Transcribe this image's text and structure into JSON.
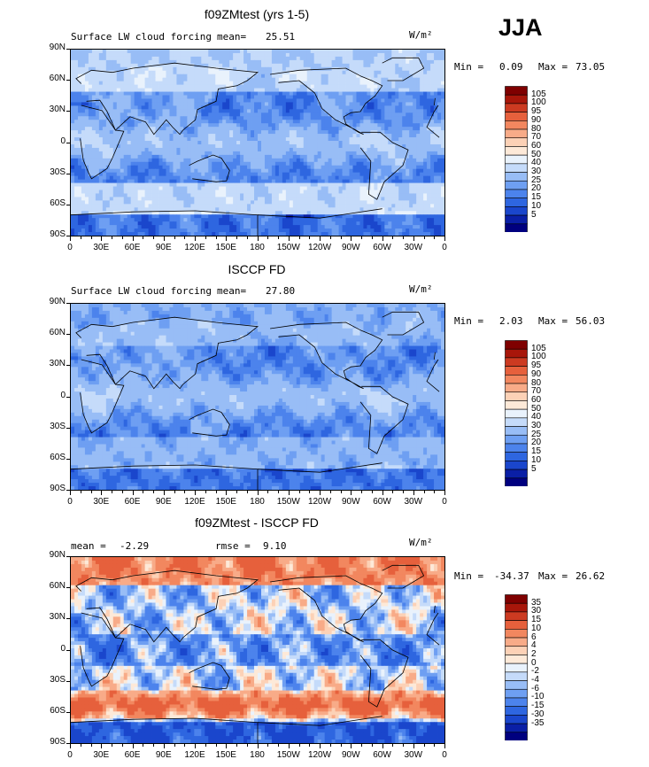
{
  "season": "JJA",
  "colors": {
    "sequential": [
      "#00007f",
      "#0a1fa6",
      "#1a46cc",
      "#2e66e0",
      "#4c83ec",
      "#6e9ff2",
      "#98bdf6",
      "#c5dbfa",
      "#e9f2fc",
      "#fde9d8",
      "#fcd1b6",
      "#f8ab88",
      "#f2875f",
      "#e6603c",
      "#cc3a21",
      "#a8160a",
      "#7f0000"
    ],
    "diverging": [
      "#00007f",
      "#0a1fa6",
      "#1a46cc",
      "#2e66e0",
      "#4c83ec",
      "#6e9ff2",
      "#98bdf6",
      "#c5dbfa",
      "#e9f2fc",
      "#fde9d8",
      "#fcd1b6",
      "#f8ab88",
      "#f2875f",
      "#e6603c",
      "#cc3a21",
      "#a8160a",
      "#7f0000"
    ]
  },
  "panels": [
    {
      "title": "f09ZMtest (yrs 1-5)",
      "left_label": "Surface LW cloud forcing",
      "mean_label": "mean=",
      "mean_value": "25.51",
      "rmse_label": "",
      "rmse_value": "",
      "units": "W/m²",
      "min_label": "Min =",
      "min_value": "0.09",
      "max_label": "Max =",
      "max_value": "73.05",
      "legend_levels": [
        "105",
        "100",
        "95",
        "90",
        "80",
        "70",
        "60",
        "50",
        "40",
        "30",
        "25",
        "20",
        "15",
        "10",
        "5"
      ],
      "palette": "sequential"
    },
    {
      "title": "ISCCP FD",
      "left_label": "Surface LW cloud forcing",
      "mean_label": "mean=",
      "mean_value": "27.80",
      "rmse_label": "",
      "rmse_value": "",
      "units": "W/m²",
      "min_label": "Min =",
      "min_value": "2.03",
      "max_label": "Max =",
      "max_value": "56.03",
      "legend_levels": [
        "105",
        "100",
        "95",
        "90",
        "80",
        "70",
        "60",
        "50",
        "40",
        "30",
        "25",
        "20",
        "15",
        "10",
        "5"
      ],
      "palette": "sequential"
    },
    {
      "title": "f09ZMtest - ISCCP FD",
      "left_label": "",
      "mean_label": "mean =",
      "mean_value": "-2.29",
      "rmse_label": "rmse =",
      "rmse_value": "9.10",
      "units": "W/m²",
      "min_label": "Min =",
      "min_value": "-34.37",
      "max_label": "Max =",
      "max_value": "26.62",
      "legend_levels": [
        "35",
        "30",
        "15",
        "10",
        "6",
        "4",
        "2",
        "0",
        "-2",
        "-4",
        "-6",
        "-10",
        "-15",
        "-30",
        "-35"
      ],
      "palette": "diverging"
    }
  ],
  "axes": {
    "lat_ticks": [
      "90N",
      "60N",
      "30N",
      "0",
      "30S",
      "60S",
      "90S"
    ],
    "lon_ticks": [
      "0",
      "30E",
      "60E",
      "90E",
      "120E",
      "150E",
      "180",
      "150W",
      "120W",
      "90W",
      "60W",
      "30W",
      "0"
    ]
  },
  "chart_data": [
    {
      "type": "heatmap",
      "title": "f09ZMtest (yrs 1-5)",
      "variable": "Surface LW cloud forcing",
      "units": "W/m2",
      "season": "JJA",
      "mean": 25.51,
      "min": 0.09,
      "max": 73.05,
      "contour_levels": [
        5,
        10,
        15,
        20,
        25,
        30,
        40,
        50,
        60,
        70,
        80,
        90,
        95,
        100,
        105
      ],
      "xlim": [
        0,
        360
      ],
      "ylim": [
        -90,
        90
      ],
      "grid": false
    },
    {
      "type": "heatmap",
      "title": "ISCCP FD",
      "variable": "Surface LW cloud forcing",
      "units": "W/m2",
      "season": "JJA",
      "mean": 27.8,
      "min": 2.03,
      "max": 56.03,
      "contour_levels": [
        5,
        10,
        15,
        20,
        25,
        30,
        40,
        50,
        60,
        70,
        80,
        90,
        95,
        100,
        105
      ],
      "xlim": [
        0,
        360
      ],
      "ylim": [
        -90,
        90
      ],
      "grid": false
    },
    {
      "type": "heatmap",
      "title": "f09ZMtest - ISCCP FD",
      "units": "W/m2",
      "season": "JJA",
      "mean": -2.29,
      "rmse": 9.1,
      "min": -34.37,
      "max": 26.62,
      "contour_levels": [
        -35,
        -30,
        -15,
        -10,
        -6,
        -4,
        -2,
        0,
        2,
        4,
        6,
        10,
        15,
        30,
        35
      ],
      "xlim": [
        0,
        360
      ],
      "ylim": [
        -90,
        90
      ],
      "grid": false
    }
  ]
}
